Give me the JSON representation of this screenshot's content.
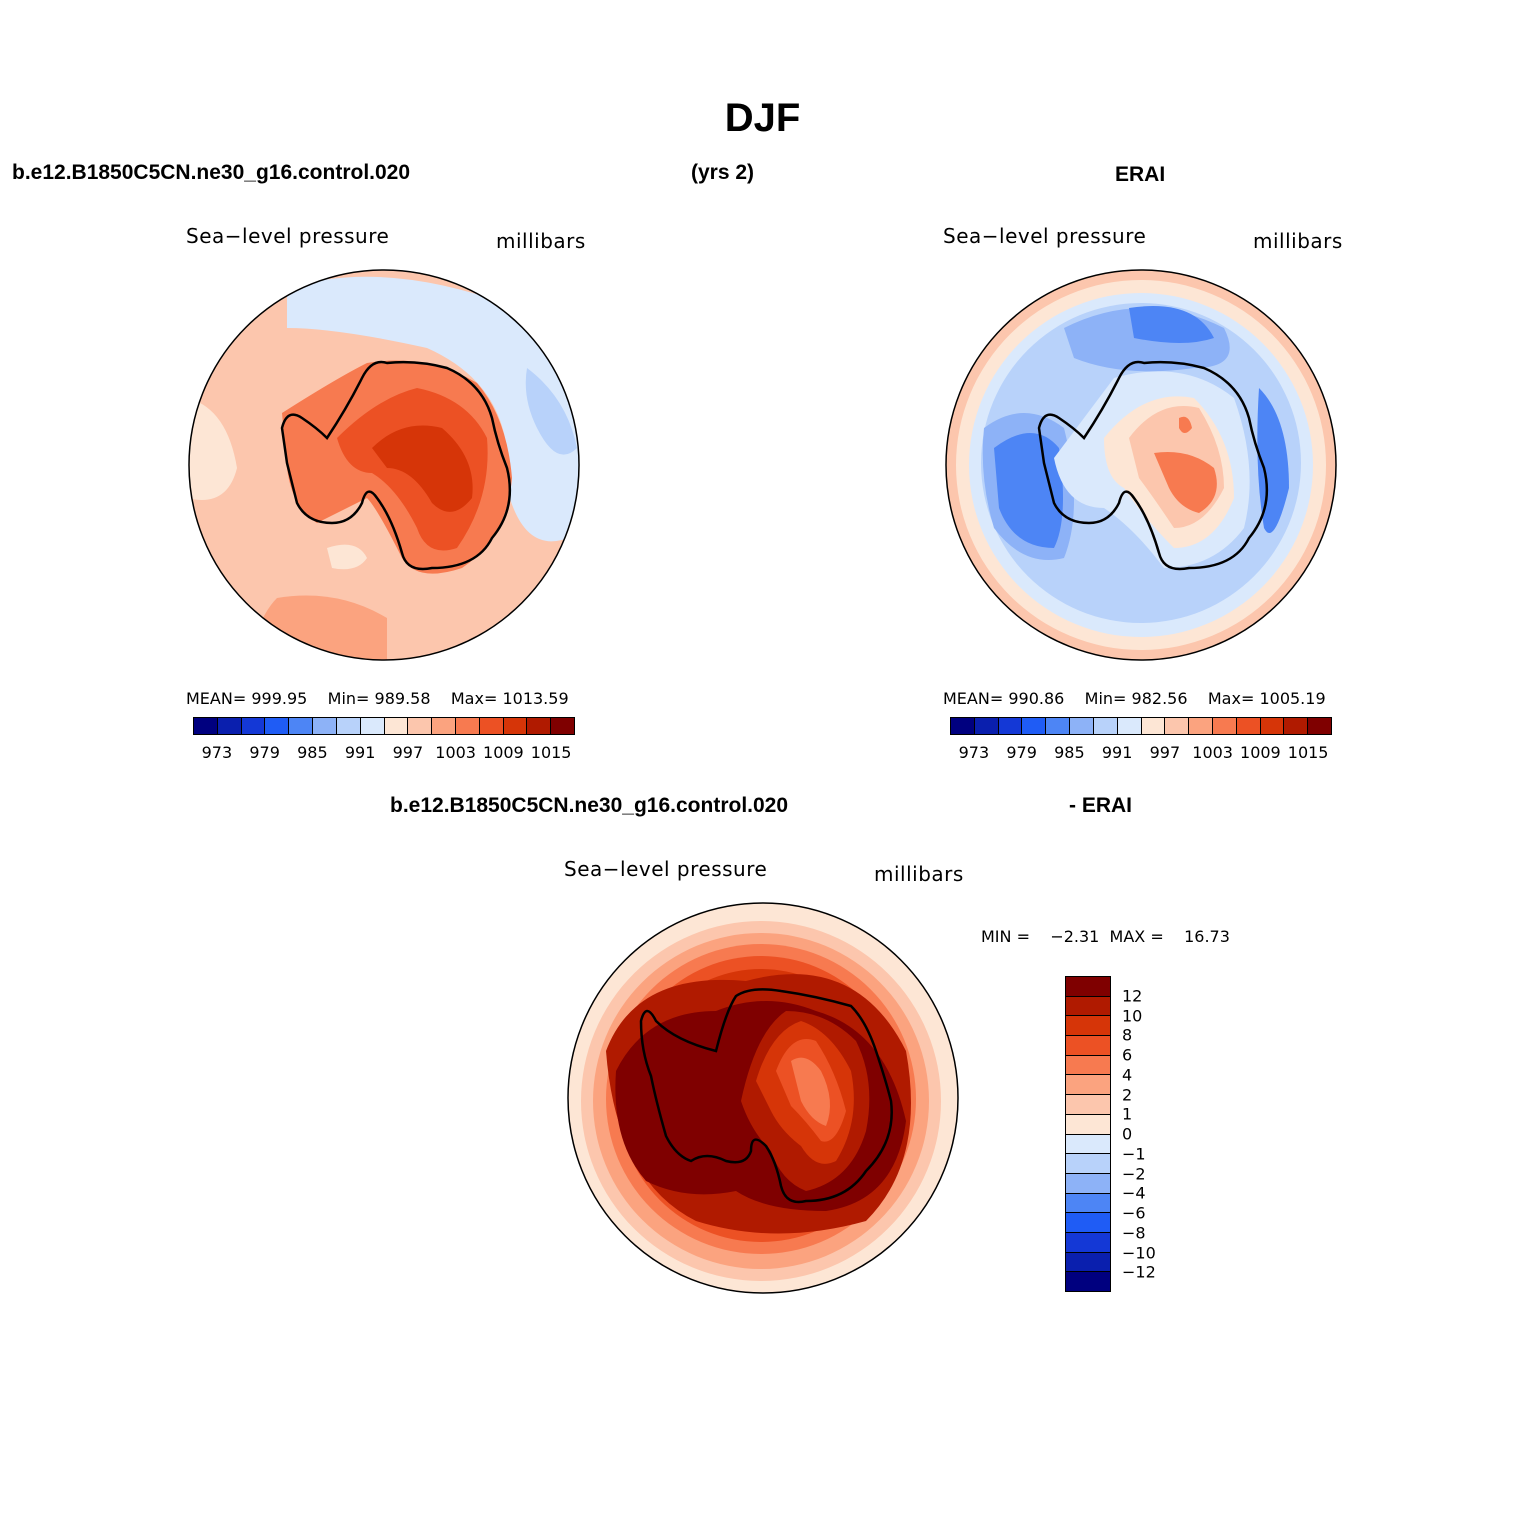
{
  "title": "DJF",
  "header": {
    "case_name": "b.e12.B1850C5CN.ne30_g16.control.020",
    "years": "(yrs 2)",
    "obs_name": "ERAI",
    "diff_case_name": "b.e12.B1850C5CN.ne30_g16.control.020",
    "diff_obs_name": "- ERAI"
  },
  "panels": [
    {
      "variable": "Sea−level pressure",
      "units": "millibars",
      "stats": {
        "mean_label": "MEAN=",
        "mean": "999.95",
        "min_label": "Min=",
        "min": "989.58",
        "max_label": "Max=",
        "max": "1013.59"
      }
    },
    {
      "variable": "Sea−level pressure",
      "units": "millibars",
      "stats": {
        "mean_label": "MEAN=",
        "mean": "990.86",
        "min_label": "Min=",
        "min": "982.56",
        "max_label": "Max=",
        "max": "1005.19"
      }
    },
    {
      "variable": "Sea−level pressure",
      "units": "millibars",
      "stats": {
        "min_label": "MIN =",
        "min": "−2.31",
        "max_label": "MAX =",
        "max": "16.73"
      }
    }
  ],
  "abs_colorbar": {
    "colors": [
      "#00007f",
      "#0a1fae",
      "#1438d6",
      "#1f5cf5",
      "#4d85f5",
      "#8db2f7",
      "#b8d2fa",
      "#dae9fc",
      "#fde6d5",
      "#fcc6ad",
      "#fba37f",
      "#f77a50",
      "#ec5124",
      "#d63508",
      "#b01a00",
      "#7f0000"
    ],
    "tick_labels": [
      "973",
      "979",
      "985",
      "991",
      "997",
      "1003",
      "1009",
      "1015"
    ]
  },
  "diff_colorbar": {
    "colors": [
      "#7f0000",
      "#b01a00",
      "#d63508",
      "#ec5124",
      "#f77a50",
      "#fba37f",
      "#fcc6ad",
      "#fde6d5",
      "#dae9fc",
      "#b8d2fa",
      "#8db2f7",
      "#4d85f5",
      "#1f5cf5",
      "#1438d6",
      "#0a1fae",
      "#00007f"
    ],
    "tick_labels": [
      "12",
      "10",
      "8",
      "6",
      "4",
      "2",
      "1",
      "0",
      "−1",
      "−2",
      "−4",
      "−6",
      "−8",
      "−10",
      "−12"
    ]
  }
}
